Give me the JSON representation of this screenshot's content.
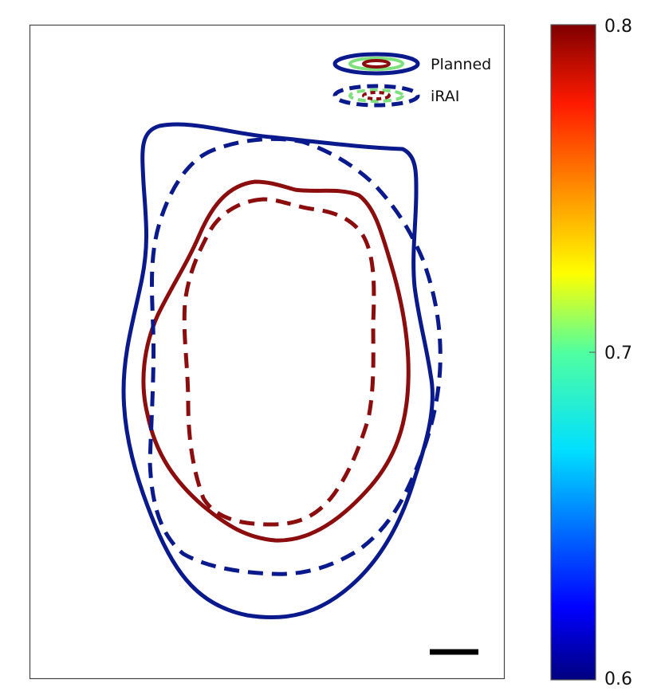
{
  "chart_data": {
    "type": "contour",
    "title": "",
    "xlabel": "",
    "ylabel": "",
    "grid": false,
    "legend": {
      "placement": "top-right",
      "entries": [
        {
          "label": "Planned",
          "line_style": "solid"
        },
        {
          "label": "iRAI",
          "line_style": "dashed"
        }
      ]
    },
    "colorbar": {
      "colormap": "jet",
      "range": [
        0.6,
        0.8
      ],
      "tick_labels": [
        "0.8",
        "0.7",
        "0.6"
      ]
    },
    "contours": [
      {
        "series": "Planned",
        "level": 0.6,
        "color": "#0a1a8c",
        "style": "solid"
      },
      {
        "series": "Planned",
        "level": 0.8,
        "color": "#8b0d0d",
        "style": "solid"
      },
      {
        "series": "iRAI",
        "level": 0.6,
        "color": "#0a1a8c",
        "style": "dashed"
      },
      {
        "series": "iRAI",
        "level": 0.8,
        "color": "#8b0d0d",
        "style": "dashed"
      }
    ],
    "scale_bar": {
      "label": ""
    }
  },
  "colors": {
    "outer_contour": "#0a1a8c",
    "inner_contour": "#8b0d0d",
    "legend_green": "#7de07d",
    "frame": "#444444"
  }
}
